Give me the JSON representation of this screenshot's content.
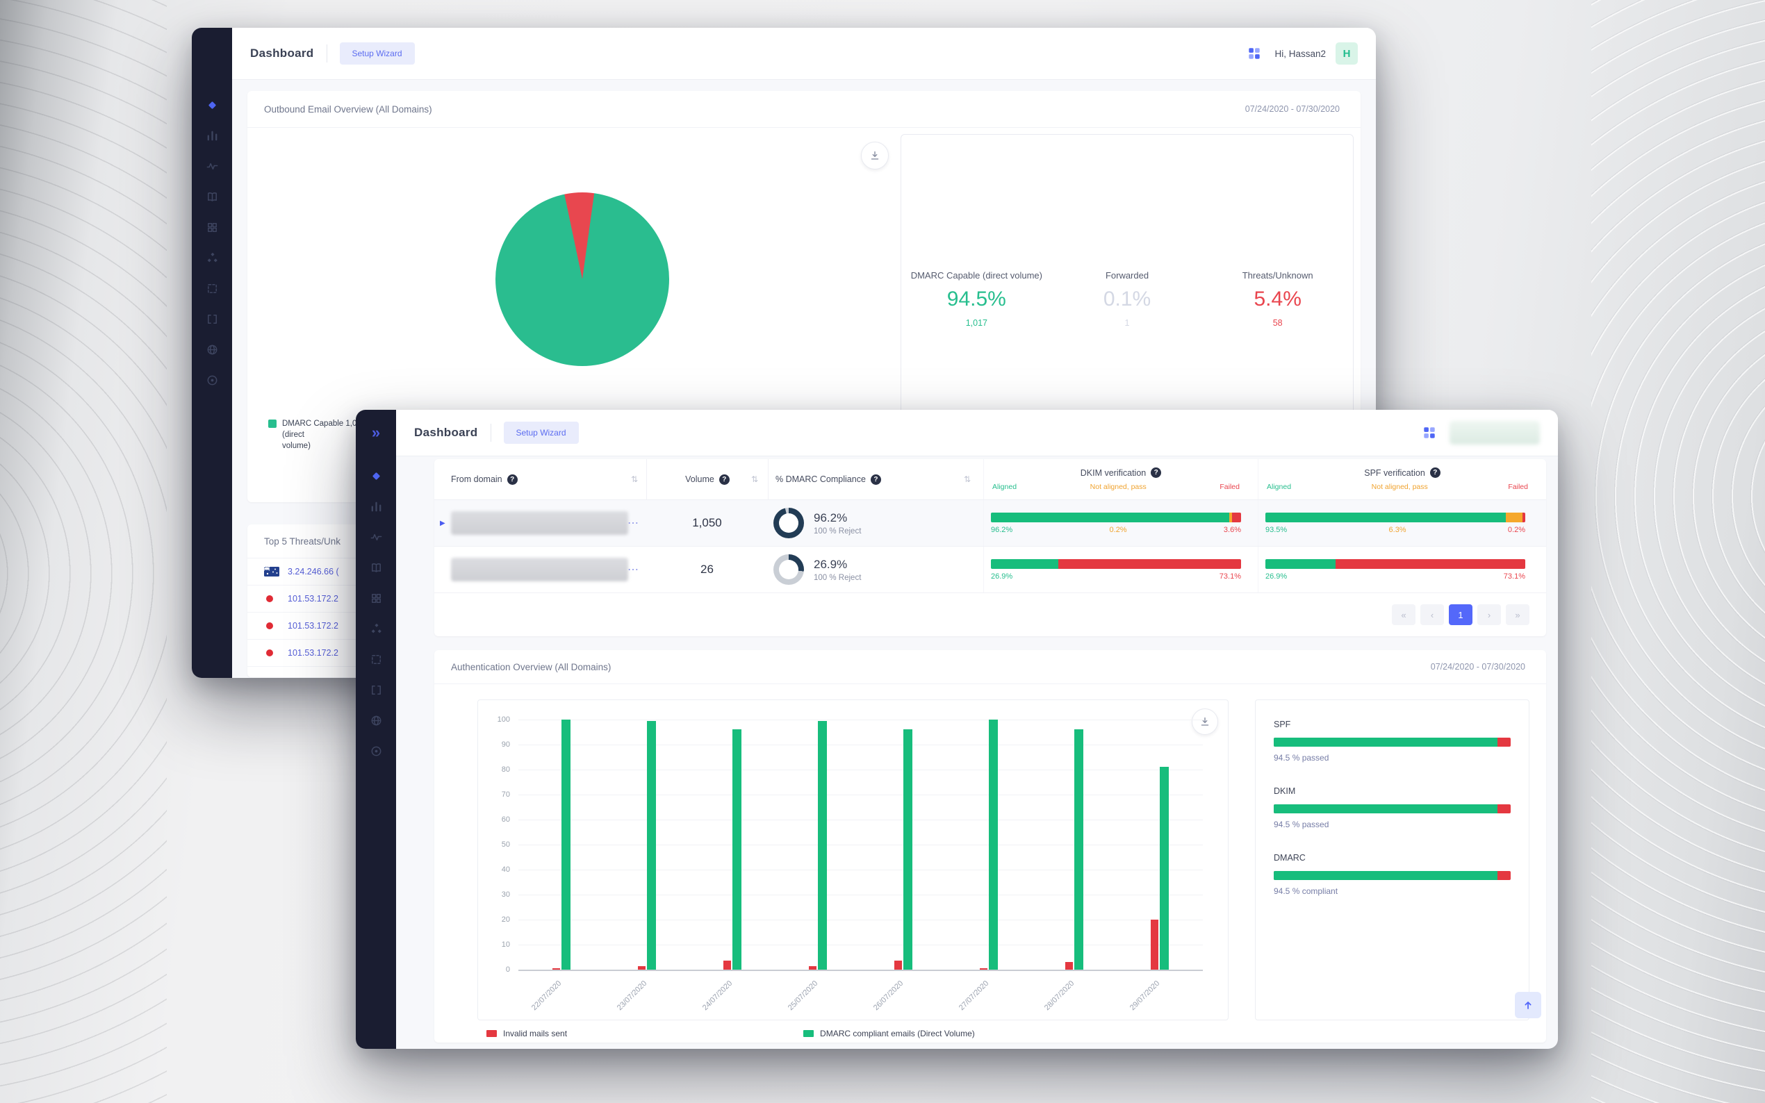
{
  "colors": {
    "accent": "#5468fa",
    "green": "#27be8e",
    "chart_green": "#17bd7c",
    "red": "#e9454e",
    "chart_red": "#e43840",
    "orange": "#f5a82c",
    "sidebar_bg": "#1a1d31",
    "donut_dark": "#223c55",
    "donut_light": "#c9ced5"
  },
  "icons": {
    "help": "?",
    "sort": "⇅",
    "collapse": "»",
    "expander": "▶",
    "menu_dots": "⋯"
  },
  "sidebar": {
    "items": [
      {
        "icon": "dashboard",
        "active": true
      },
      {
        "icon": "bar-chart",
        "active": false
      },
      {
        "icon": "activity",
        "active": false
      },
      {
        "icon": "reports",
        "active": false
      },
      {
        "icon": "grid",
        "active": false
      },
      {
        "icon": "nodes",
        "active": false
      },
      {
        "icon": "selection",
        "active": false
      },
      {
        "icon": "code",
        "active": false
      },
      {
        "icon": "globe",
        "active": false
      },
      {
        "icon": "target",
        "active": false
      }
    ]
  },
  "back_window": {
    "header": {
      "title": "Dashboard",
      "setup_wizard": "Setup Wizard",
      "greeting": "Hi, Hassan2",
      "avatar_letter": "H"
    },
    "overview_card": {
      "title": "Outbound Email Overview (All Domains)",
      "date_range": "07/24/2020 - 07/30/2020",
      "legend_lines": [
        "DMARC Capable  1,0",
        "(direct",
        "volume)"
      ],
      "stats": [
        {
          "label": "DMARC Capable (direct volume)",
          "value": "94.5%",
          "count": "1,017",
          "color": "green"
        },
        {
          "label": "Forwarded",
          "value": "0.1%",
          "count": "1",
          "color": "muted"
        },
        {
          "label": "Threats/Unknown",
          "value": "5.4%",
          "count": "58",
          "color": "red"
        }
      ]
    },
    "threats_card": {
      "title": "Top 5 Threats/Unk",
      "rows": [
        {
          "ip": "3.24.246.66 (",
          "icon": "australia-flag"
        },
        {
          "ip": "101.53.172.2",
          "icon": "red-dot"
        },
        {
          "ip": "101.53.172.2",
          "icon": "red-dot"
        },
        {
          "ip": "101.53.172.2",
          "icon": "red-dot"
        }
      ]
    }
  },
  "front_window": {
    "header": {
      "title": "Dashboard",
      "setup_wizard": "Setup Wizard",
      "user_redacted": true
    },
    "table": {
      "columns": [
        {
          "label": "From domain"
        },
        {
          "label": "Volume"
        },
        {
          "label": "% DMARC Compliance"
        },
        {
          "label": "DKIM verification"
        },
        {
          "label": "SPF verification"
        }
      ],
      "sub_columns": [
        "Aligned",
        "Not aligned, pass",
        "Failed"
      ],
      "rows": [
        {
          "expander": true,
          "domain_redacted": true,
          "volume": "1,050",
          "compliance": {
            "pct": "96.2%",
            "note": "100 % Reject",
            "value": 96.2
          },
          "dkim": {
            "segments": [
              96.2,
              0.2,
              3.6
            ],
            "labels": [
              "96.2%",
              "0.2%",
              "3.6%"
            ]
          },
          "spf": {
            "segments": [
              93.5,
              6.3,
              0.2
            ],
            "labels": [
              "93.5%",
              "6.3%",
              "0.2%"
            ]
          }
        },
        {
          "expander": false,
          "domain_redacted": true,
          "volume": "26",
          "compliance": {
            "pct": "26.9%",
            "note": "100 % Reject",
            "value": 26.9
          },
          "dkim": {
            "segments": [
              26.9,
              0,
              73.1
            ],
            "labels": [
              "26.9%",
              "",
              "73.1%"
            ]
          },
          "spf": {
            "segments": [
              26.9,
              0,
              73.1
            ],
            "labels": [
              "26.9%",
              "",
              "73.1%"
            ]
          }
        }
      ]
    },
    "pagination": {
      "items": [
        "«",
        "‹",
        "1",
        "›",
        "»"
      ],
      "active_index": 2
    },
    "auth_card": {
      "title": "Authentication Overview (All Domains)",
      "date_range": "07/24/2020 - 07/30/2020",
      "summary": [
        {
          "name": "SPF",
          "value": 94.5,
          "caption": "94.5 % passed"
        },
        {
          "name": "DKIM",
          "value": 94.5,
          "caption": "94.5 % passed"
        },
        {
          "name": "DMARC",
          "value": 94.5,
          "caption": "94.5 % compliant"
        }
      ]
    }
  },
  "chart_data": [
    {
      "type": "pie",
      "title": "Outbound Email Overview (All Domains)",
      "slices": [
        {
          "label": "DMARC Capable (direct volume)",
          "value": 94.5,
          "color": "#2abd8f"
        },
        {
          "label": "Threats/Unknown",
          "value": 5.4,
          "color": "#e8474f"
        },
        {
          "label": "Forwarded",
          "value": 0.1,
          "color": "#e8474f"
        }
      ],
      "legend_position": "bottom-left"
    },
    {
      "type": "bar",
      "title": "Authentication Overview (All Domains)",
      "categories": [
        "22/07/2020",
        "23/07/2020",
        "24/07/2020",
        "25/07/2020",
        "26/07/2020",
        "27/07/2020",
        "28/07/2020",
        "29/07/2020"
      ],
      "series": [
        {
          "name": "Invalid mails sent",
          "color": "#e43840",
          "values": [
            0.5,
            1.5,
            3.5,
            1.5,
            3.5,
            0.5,
            3,
            20
          ]
        },
        {
          "name": "DMARC compliant emails (Direct Volume)",
          "color": "#17bd7c",
          "values": [
            100,
            99.5,
            96,
            99.5,
            96,
            100,
            96,
            81
          ]
        }
      ],
      "xlabel": "",
      "ylabel": "",
      "ylim": [
        0,
        100
      ],
      "yticks": [
        0,
        10,
        20,
        30,
        40,
        50,
        60,
        70,
        80,
        90,
        100
      ],
      "grid": true,
      "legend_position": "bottom"
    }
  ]
}
